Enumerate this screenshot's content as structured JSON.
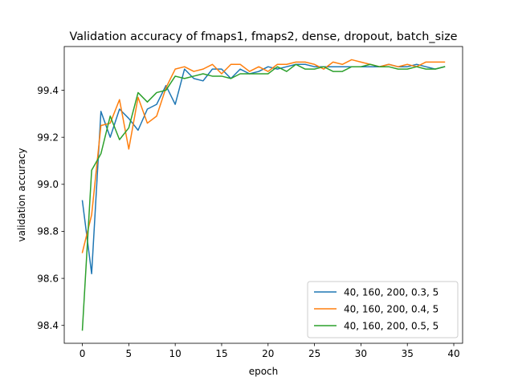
{
  "chart_data": {
    "type": "line",
    "title": "Validation accuracy of fmaps1, fmaps2, dense, dropout, batch_size",
    "xlabel": "epoch",
    "ylabel": "validation accuracy",
    "xlim": [
      -1.95,
      40.95
    ],
    "ylim": [
      98.324,
      99.586
    ],
    "xticks": [
      0,
      5,
      10,
      15,
      20,
      25,
      30,
      35,
      40
    ],
    "yticks": [
      98.4,
      98.6,
      98.8,
      99.0,
      99.2,
      99.4
    ],
    "ytick_labels": [
      "98.4",
      "98.6",
      "98.8",
      "99.0",
      "99.2",
      "99.4"
    ],
    "grid": false,
    "legend_position": "lower right",
    "x": [
      0,
      1,
      2,
      3,
      4,
      5,
      6,
      7,
      8,
      9,
      10,
      11,
      12,
      13,
      14,
      15,
      16,
      17,
      18,
      19,
      20,
      21,
      22,
      23,
      24,
      25,
      26,
      27,
      28,
      29,
      30,
      31,
      32,
      33,
      34,
      35,
      36,
      37,
      38,
      39
    ],
    "series": [
      {
        "name": "40, 160, 200, 0.3, 5",
        "color": "#1f77b4",
        "values": [
          98.93,
          98.62,
          99.31,
          99.2,
          99.32,
          99.28,
          99.23,
          99.32,
          99.34,
          99.42,
          99.34,
          99.49,
          99.45,
          99.44,
          99.49,
          99.49,
          99.45,
          99.49,
          99.47,
          99.48,
          99.5,
          99.49,
          99.5,
          99.51,
          99.51,
          99.5,
          99.5,
          99.5,
          99.5,
          99.5,
          99.5,
          99.5,
          99.5,
          99.51,
          99.5,
          99.5,
          99.51,
          99.5,
          99.49,
          99.5
        ]
      },
      {
        "name": "40, 160, 200, 0.4, 5",
        "color": "#ff7f0e",
        "values": [
          98.71,
          98.87,
          99.25,
          99.26,
          99.36,
          99.15,
          99.37,
          99.26,
          99.29,
          99.41,
          99.49,
          99.5,
          99.48,
          99.49,
          99.51,
          99.47,
          99.51,
          99.51,
          99.48,
          99.5,
          99.48,
          99.51,
          99.51,
          99.52,
          99.52,
          99.51,
          99.49,
          99.52,
          99.51,
          99.53,
          99.52,
          99.51,
          99.5,
          99.51,
          99.5,
          99.51,
          99.5,
          99.52,
          99.52,
          99.52
        ]
      },
      {
        "name": "40, 160, 200, 0.5, 5",
        "color": "#2ca02c",
        "values": [
          98.38,
          99.06,
          99.13,
          99.29,
          99.19,
          99.24,
          99.39,
          99.35,
          99.39,
          99.4,
          99.46,
          99.45,
          99.46,
          99.47,
          99.46,
          99.46,
          99.45,
          99.47,
          99.47,
          99.47,
          99.47,
          99.5,
          99.48,
          99.51,
          99.49,
          99.49,
          99.5,
          99.48,
          99.48,
          99.5,
          99.5,
          99.51,
          99.5,
          99.5,
          99.49,
          99.49,
          99.5,
          99.49,
          99.49,
          99.5
        ]
      }
    ]
  }
}
